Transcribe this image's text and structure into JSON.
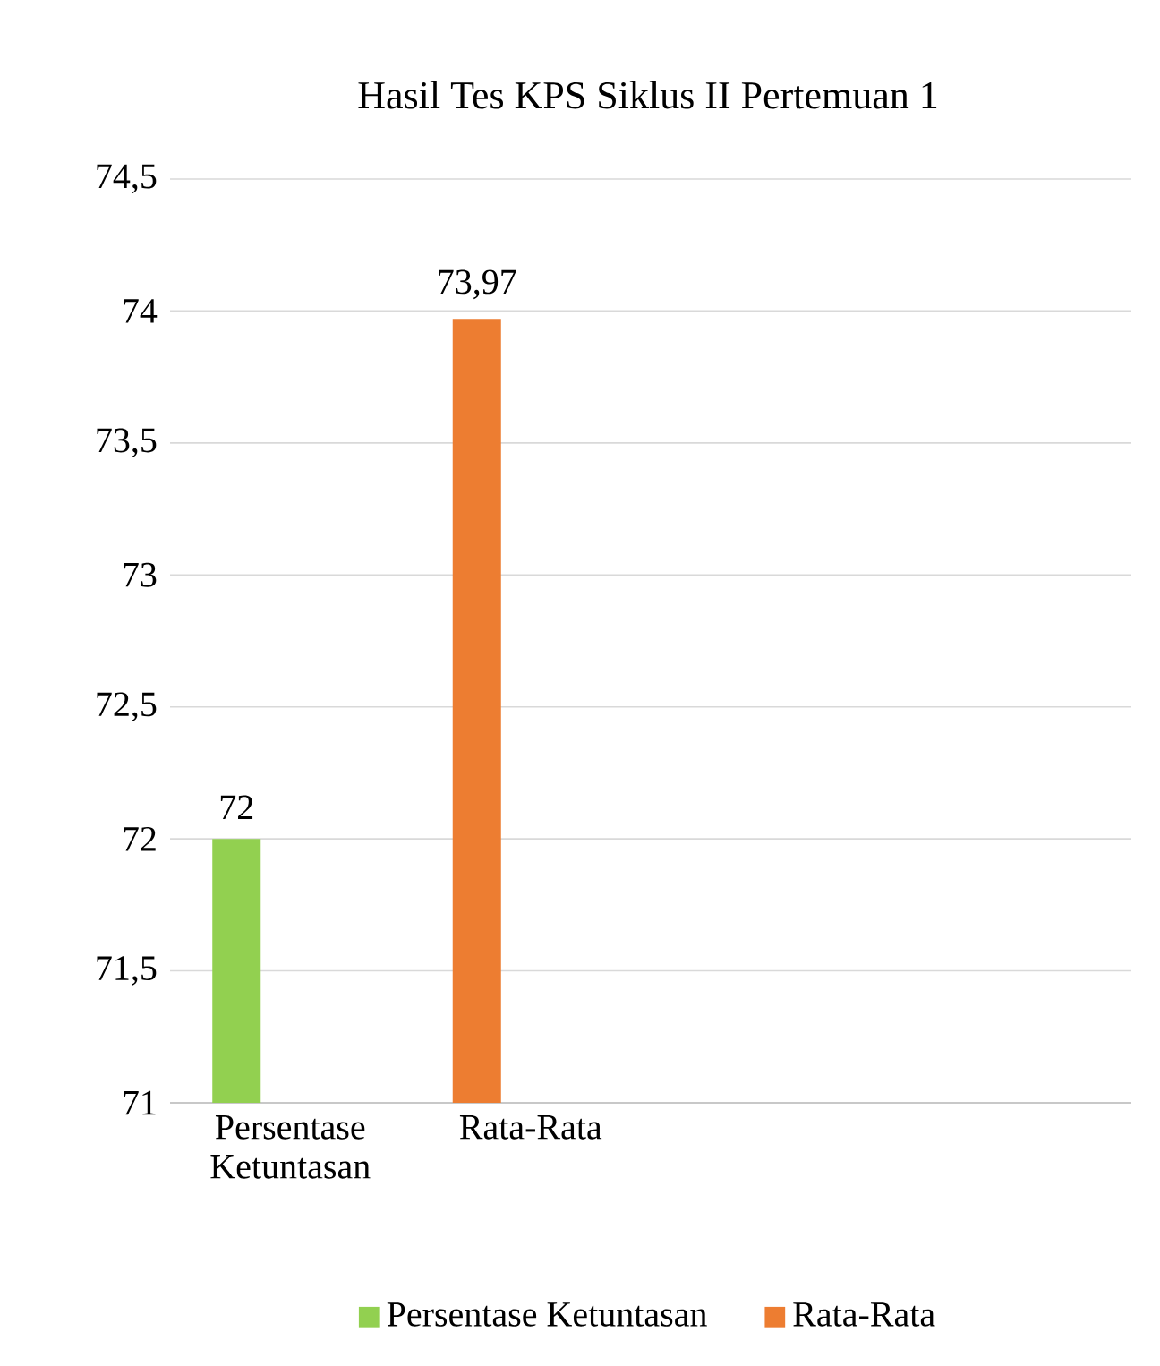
{
  "chart_data": {
    "type": "bar",
    "title": "Hasil Tes KPS Siklus II Pertemuan 1",
    "categories": [
      "Persentase Ketuntasan",
      "Rata-Rata",
      null,
      null
    ],
    "series": [
      {
        "name": "Persentase Ketuntasan",
        "color": "#92d050",
        "values": [
          72,
          null,
          null,
          null
        ],
        "value_labels": [
          "72",
          null,
          null,
          null
        ]
      },
      {
        "name": "Rata-Rata",
        "color": "#ed7d31",
        "values": [
          null,
          73.97,
          null,
          null
        ],
        "value_labels": [
          null,
          "73,97",
          null,
          null
        ]
      }
    ],
    "ylim": [
      71,
      74.5
    ],
    "yticks": [
      71,
      {
        "value": 71.5,
        "label": "71,5"
      },
      72,
      {
        "value": 72.5,
        "label": "72,5"
      },
      73,
      {
        "value": 73.5,
        "label": "73,5"
      },
      74,
      {
        "value": 74.5,
        "label": "74,5"
      }
    ],
    "grid": "y",
    "legend": "bottom"
  }
}
